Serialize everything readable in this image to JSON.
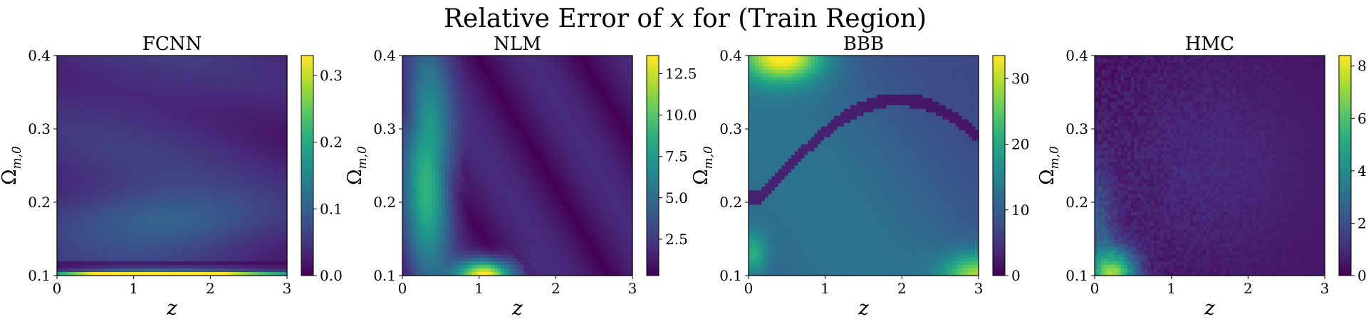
{
  "figure": {
    "title_pre": "Relative Error of ",
    "title_var": "x",
    "title_post": " for (Train Region)"
  },
  "chart_data": [
    {
      "type": "heatmap",
      "title": "FCNN",
      "xlabel": "z",
      "ylabel_base": "Ω",
      "ylabel_sub": "m,0",
      "xlim": [
        0,
        3
      ],
      "ylim": [
        0.1,
        0.4
      ],
      "xticks": [
        "0",
        "1",
        "2",
        "3"
      ],
      "yticks": [
        "0.1",
        "0.2",
        "0.3",
        "0.4"
      ],
      "colormap": "viridis",
      "colorbar": {
        "min": 0.0,
        "max": 0.33,
        "ticks": [
          "0.0",
          "0.1",
          "0.2",
          "0.3"
        ]
      }
    },
    {
      "type": "heatmap",
      "title": "NLM",
      "xlabel": "z",
      "ylabel_base": "Ω",
      "ylabel_sub": "m,0",
      "xlim": [
        0,
        3
      ],
      "ylim": [
        0.1,
        0.4
      ],
      "xticks": [
        "0",
        "1",
        "2",
        "3"
      ],
      "yticks": [
        "0.1",
        "0.2",
        "0.3",
        "0.4"
      ],
      "colormap": "viridis",
      "colorbar": {
        "min": 0.3,
        "max": 13.6,
        "ticks": [
          "2.5",
          "5.0",
          "7.5",
          "10.0",
          "12.5"
        ]
      }
    },
    {
      "type": "heatmap",
      "title": "BBB",
      "xlabel": "z",
      "ylabel_base": "Ω",
      "ylabel_sub": "m,0",
      "xlim": [
        0,
        3
      ],
      "ylim": [
        0.1,
        0.4
      ],
      "xticks": [
        "0",
        "1",
        "2",
        "3"
      ],
      "yticks": [
        "0.1",
        "0.2",
        "0.3",
        "0.4"
      ],
      "colormap": "viridis",
      "colorbar": {
        "min": 0,
        "max": 33.5,
        "ticks": [
          "0",
          "10",
          "20",
          "30"
        ]
      }
    },
    {
      "type": "heatmap",
      "title": "HMC",
      "xlabel": "z",
      "ylabel_base": "Ω",
      "ylabel_sub": "m,0",
      "xlim": [
        0,
        3
      ],
      "ylim": [
        0.1,
        0.4
      ],
      "xticks": [
        "0",
        "1",
        "2",
        "3"
      ],
      "yticks": [
        "0.1",
        "0.2",
        "0.3",
        "0.4"
      ],
      "colormap": "viridis",
      "colorbar": {
        "min": 0,
        "max": 8.4,
        "ticks": [
          "0",
          "2",
          "4",
          "6",
          "8"
        ]
      }
    }
  ]
}
